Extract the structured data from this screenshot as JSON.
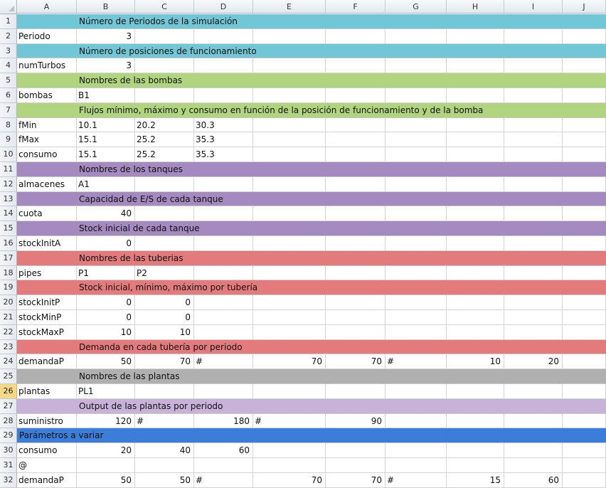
{
  "columns": [
    "A",
    "B",
    "C",
    "D",
    "E",
    "F",
    "G",
    "H",
    "I",
    "J"
  ],
  "colors": {
    "teal": "#71c7d6",
    "green": "#b1d57e",
    "purple": "#a58abf",
    "red": "#e37b7d",
    "gray": "#b0b0b0",
    "lavender": "#c8b2d8",
    "blue": "#3b7dd8"
  },
  "selected_row": "26",
  "rows": [
    {
      "num": "1",
      "band": "teal",
      "text": "Número de Periodos de la simulación",
      "start_col": "B"
    },
    {
      "num": "2",
      "cells": [
        {
          "col": "A",
          "v": "Periodo"
        },
        {
          "col": "B",
          "v": "3",
          "num": true
        }
      ]
    },
    {
      "num": "3",
      "band": "teal",
      "text": "Número de posiciones de funcionamiento",
      "start_col": "B"
    },
    {
      "num": "4",
      "cells": [
        {
          "col": "A",
          "v": "numTurbos"
        },
        {
          "col": "B",
          "v": "3",
          "num": true
        }
      ]
    },
    {
      "num": "5",
      "band": "green",
      "text": "Nombres de las bombas",
      "start_col": "B"
    },
    {
      "num": "6",
      "cells": [
        {
          "col": "A",
          "v": "bombas"
        },
        {
          "col": "B",
          "v": "B1"
        }
      ]
    },
    {
      "num": "7",
      "band": "green",
      "text": "Flujos mínimo, máximo y consumo en función de la posición de funcionamiento y de la bomba",
      "start_col": "B"
    },
    {
      "num": "8",
      "cells": [
        {
          "col": "A",
          "v": "fMin"
        },
        {
          "col": "B",
          "v": "10.1"
        },
        {
          "col": "C",
          "v": "20.2"
        },
        {
          "col": "D",
          "v": "30.3"
        }
      ]
    },
    {
      "num": "9",
      "cells": [
        {
          "col": "A",
          "v": "fMax"
        },
        {
          "col": "B",
          "v": "15.1"
        },
        {
          "col": "C",
          "v": "25.2"
        },
        {
          "col": "D",
          "v": "35.3"
        }
      ]
    },
    {
      "num": "10",
      "cells": [
        {
          "col": "A",
          "v": "consumo"
        },
        {
          "col": "B",
          "v": "15.1"
        },
        {
          "col": "C",
          "v": "25.2"
        },
        {
          "col": "D",
          "v": "35.3"
        }
      ]
    },
    {
      "num": "11",
      "band": "purple",
      "text": "Nombres de los tanques",
      "start_col": "B"
    },
    {
      "num": "12",
      "cells": [
        {
          "col": "A",
          "v": "almacenes"
        },
        {
          "col": "B",
          "v": "A1"
        }
      ]
    },
    {
      "num": "13",
      "band": "purple",
      "text": "Capacidad de E/S de cada tanque",
      "start_col": "B"
    },
    {
      "num": "14",
      "cells": [
        {
          "col": "A",
          "v": "cuota"
        },
        {
          "col": "B",
          "v": "40",
          "num": true
        }
      ]
    },
    {
      "num": "15",
      "band": "purple",
      "text": "Stock inicial de cada tanque",
      "start_col": "B"
    },
    {
      "num": "16",
      "cells": [
        {
          "col": "A",
          "v": "stockInitA"
        },
        {
          "col": "B",
          "v": "0",
          "num": true
        }
      ]
    },
    {
      "num": "17",
      "band": "red",
      "text": "Nombres de las tuberias",
      "start_col": "B"
    },
    {
      "num": "18",
      "cells": [
        {
          "col": "A",
          "v": "pipes"
        },
        {
          "col": "B",
          "v": "P1"
        },
        {
          "col": "C",
          "v": "P2"
        }
      ]
    },
    {
      "num": "19",
      "band": "red",
      "text": "Stock inicial, mínimo, máximo por tubería",
      "start_col": "B"
    },
    {
      "num": "20",
      "cells": [
        {
          "col": "A",
          "v": "stockInitP"
        },
        {
          "col": "B",
          "v": "0",
          "num": true
        },
        {
          "col": "C",
          "v": "0",
          "num": true
        }
      ]
    },
    {
      "num": "21",
      "cells": [
        {
          "col": "A",
          "v": "stockMinP"
        },
        {
          "col": "B",
          "v": "0",
          "num": true
        },
        {
          "col": "C",
          "v": "0",
          "num": true
        }
      ]
    },
    {
      "num": "22",
      "cells": [
        {
          "col": "A",
          "v": "stockMaxP"
        },
        {
          "col": "B",
          "v": "10",
          "num": true
        },
        {
          "col": "C",
          "v": "10",
          "num": true
        }
      ]
    },
    {
      "num": "23",
      "band": "red",
      "text": "Demanda en cada tubería por periodo",
      "start_col": "B"
    },
    {
      "num": "24",
      "cells": [
        {
          "col": "A",
          "v": "demandaP"
        },
        {
          "col": "B",
          "v": "50",
          "num": true
        },
        {
          "col": "C",
          "v": "70",
          "num": true
        },
        {
          "col": "D",
          "v": "#"
        },
        {
          "col": "E",
          "v": "70",
          "num": true
        },
        {
          "col": "F",
          "v": "70",
          "num": true
        },
        {
          "col": "G",
          "v": "#"
        },
        {
          "col": "H",
          "v": "10",
          "num": true
        },
        {
          "col": "I",
          "v": "20",
          "num": true
        }
      ]
    },
    {
      "num": "25",
      "band": "gray",
      "text": "Nombres de las plantas",
      "start_col": "B"
    },
    {
      "num": "26",
      "cells": [
        {
          "col": "A",
          "v": "plantas"
        },
        {
          "col": "B",
          "v": "PL1"
        }
      ]
    },
    {
      "num": "27",
      "band": "lavender",
      "text": "Output de las plantas por periodo",
      "start_col": "B"
    },
    {
      "num": "28",
      "cells": [
        {
          "col": "A",
          "v": "suministro"
        },
        {
          "col": "B",
          "v": "120",
          "num": true
        },
        {
          "col": "C",
          "v": "#"
        },
        {
          "col": "D",
          "v": "180",
          "num": true
        },
        {
          "col": "E",
          "v": "#"
        },
        {
          "col": "F",
          "v": "90",
          "num": true
        }
      ]
    },
    {
      "num": "29",
      "band": "blue",
      "text": "Parámetros a variar",
      "start_col": "A"
    },
    {
      "num": "30",
      "cells": [
        {
          "col": "A",
          "v": "consumo"
        },
        {
          "col": "B",
          "v": "20",
          "num": true
        },
        {
          "col": "C",
          "v": "40",
          "num": true
        },
        {
          "col": "D",
          "v": "60",
          "num": true
        }
      ]
    },
    {
      "num": "31",
      "cells": [
        {
          "col": "A",
          "v": "@"
        }
      ]
    },
    {
      "num": "32",
      "cells": [
        {
          "col": "A",
          "v": "demandaP"
        },
        {
          "col": "B",
          "v": "50",
          "num": true
        },
        {
          "col": "C",
          "v": "50",
          "num": true
        },
        {
          "col": "D",
          "v": "#"
        },
        {
          "col": "E",
          "v": "70",
          "num": true
        },
        {
          "col": "F",
          "v": "70",
          "num": true
        },
        {
          "col": "G",
          "v": "#"
        },
        {
          "col": "H",
          "v": "15",
          "num": true
        },
        {
          "col": "I",
          "v": "60",
          "num": true
        }
      ]
    }
  ]
}
